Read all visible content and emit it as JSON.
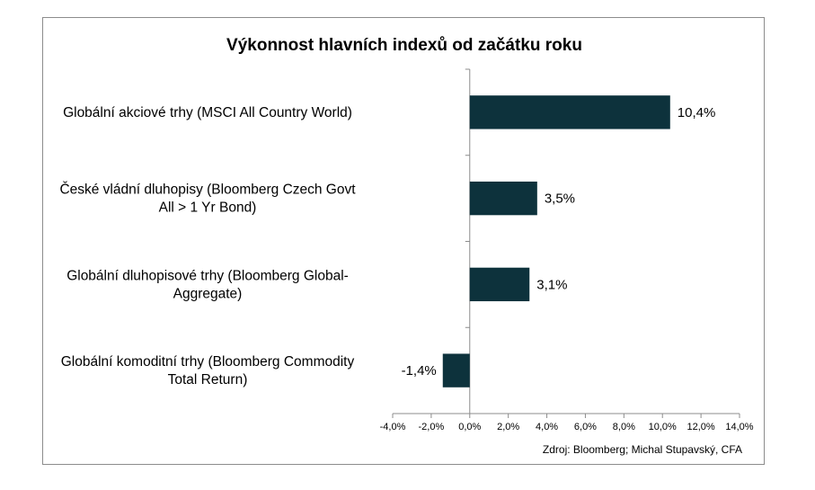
{
  "chart_data": {
    "type": "bar",
    "orientation": "horizontal",
    "title": "Výkonnost hlavních indexů od začátku roku",
    "categories": [
      [
        "Globální akciové trhy (MSCI All Country World)"
      ],
      [
        "České vládní dluhopisy (Bloomberg Czech Govt",
        "All > 1 Yr Bond)"
      ],
      [
        "Globální dluhopisové trhy (Bloomberg Global-",
        "Aggregate)"
      ],
      [
        "Globální komoditní trhy (Bloomberg Commodity",
        "Total Return)"
      ]
    ],
    "values": [
      10.4,
      3.5,
      3.1,
      -1.4
    ],
    "data_labels": [
      "10,4%",
      "3,5%",
      "3,1%",
      "-1,4%"
    ],
    "xlim": [
      -4,
      14
    ],
    "x_ticks": [
      -4,
      -2,
      0,
      2,
      4,
      6,
      8,
      10,
      12,
      14
    ],
    "x_tick_labels": [
      "-4,0%",
      "-2,0%",
      "0,0%",
      "2,0%",
      "4,0%",
      "6,0%",
      "8,0%",
      "10,0%",
      "12,0%",
      "14,0%"
    ],
    "grid": false,
    "bar_color": "#0d323c",
    "source": "Zdroj: Bloomberg; Michal Stupavský, CFA"
  }
}
